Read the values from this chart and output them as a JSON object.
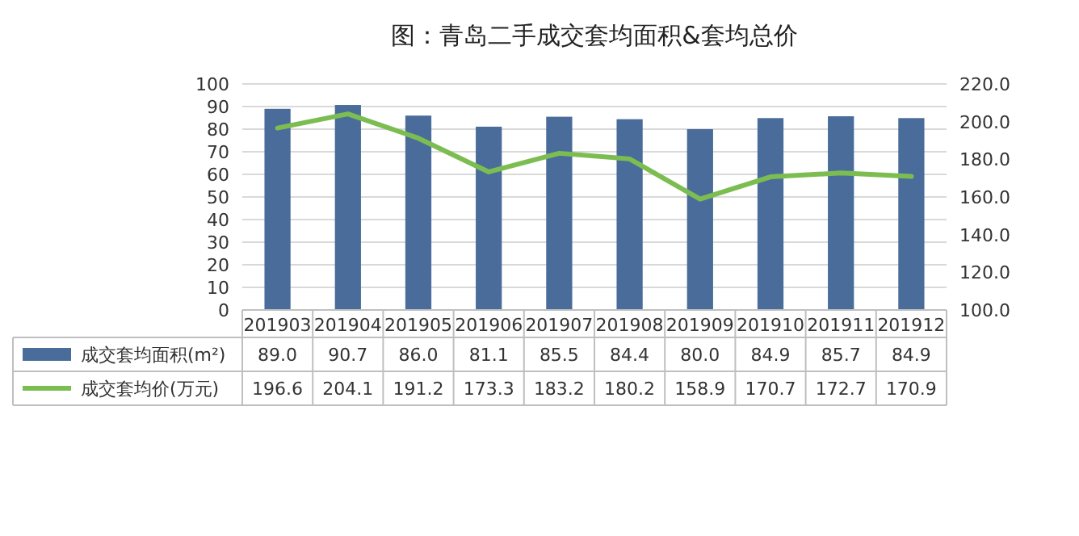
{
  "chart_data": {
    "type": "bar",
    "title": "图：青岛二手成交套均面积&套均总价",
    "categories": [
      "201903",
      "201904",
      "201905",
      "201906",
      "201907",
      "201908",
      "201909",
      "201910",
      "201911",
      "201912"
    ],
    "series": [
      {
        "name": "成交套均面积(m²)",
        "color": "#4a6c9b",
        "values": [
          89.0,
          90.7,
          86.0,
          81.1,
          85.5,
          84.4,
          80.0,
          84.9,
          85.7,
          84.9
        ],
        "value_labels": [
          "89.0",
          "90.7",
          "86.0",
          "81.1",
          "85.5",
          "84.4",
          "80.0",
          "84.9",
          "85.7",
          "84.9"
        ]
      },
      {
        "name": "成交套均价(万元)",
        "type": "line",
        "axis": "y2",
        "color": "#7cbd52",
        "values": [
          196.6,
          204.1,
          191.2,
          173.3,
          183.2,
          180.2,
          158.9,
          170.7,
          172.7,
          170.9
        ],
        "value_labels": [
          "196.6",
          "204.1",
          "191.2",
          "173.3",
          "183.2",
          "180.2",
          "158.9",
          "170.7",
          "172.7",
          "170.9"
        ]
      }
    ],
    "ylim": [
      0,
      100
    ],
    "yticks": [
      0,
      10,
      20,
      30,
      40,
      50,
      60,
      70,
      80,
      90,
      100
    ],
    "y2lim": [
      100,
      220
    ],
    "y2ticks": [
      {
        "value": 100,
        "label": "100.0"
      },
      {
        "value": 120,
        "label": "120.0"
      },
      {
        "value": 140,
        "label": "140.0"
      },
      {
        "value": 160,
        "label": "160.0"
      },
      {
        "value": 180,
        "label": "180.0"
      },
      {
        "value": 200,
        "label": "200.0"
      },
      {
        "value": 220,
        "label": "220.0"
      }
    ],
    "grid": "y",
    "legend": "bottom",
    "data_labels": true
  }
}
